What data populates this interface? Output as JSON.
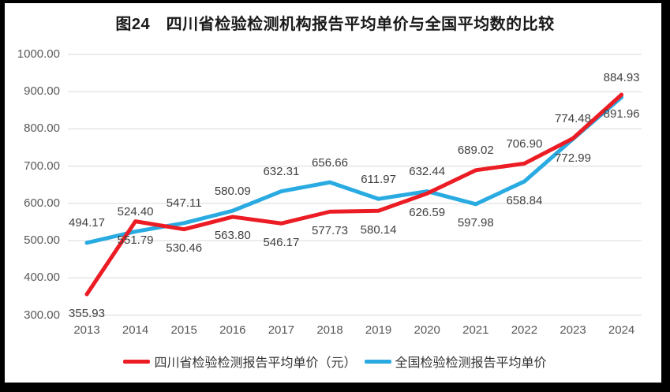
{
  "title": "图24　四川省检验检测机构报告平均单价与全国平均数的比较",
  "chart_data": {
    "type": "line",
    "categories": [
      "2013",
      "2014",
      "2015",
      "2016",
      "2017",
      "2018",
      "2019",
      "2020",
      "2021",
      "2022",
      "2023",
      "2024"
    ],
    "series": [
      {
        "name": "四川省检验检测报告平均单价（元）",
        "color": "#ec1c24",
        "values": [
          355.93,
          551.79,
          530.46,
          563.8,
          546.17,
          577.73,
          580.14,
          626.59,
          689.02,
          706.9,
          774.48,
          891.96
        ],
        "label_side": [
          "below",
          "below",
          "below",
          "below",
          "below",
          "below",
          "below",
          "below",
          "above",
          "above",
          "above",
          "below"
        ]
      },
      {
        "name": "全国检验检测报告平均单价",
        "color": "#29abe2",
        "values": [
          494.17,
          524.4,
          547.11,
          580.09,
          632.31,
          656.66,
          611.97,
          632.44,
          597.98,
          658.84,
          772.99,
          884.93
        ],
        "label_side": [
          "above",
          "above",
          "above",
          "above",
          "above",
          "above",
          "above",
          "above",
          "below",
          "below",
          "below",
          "above"
        ]
      }
    ],
    "xlabel": "",
    "ylabel": "",
    "ylim": [
      300,
      1000
    ],
    "ytick_step": 100,
    "ytick_format_decimals": 2,
    "value_format_decimals": 2,
    "grid": true,
    "legend_position": "bottom",
    "gridline_color": "#d9d9d9",
    "axis_text_color": "#595959",
    "label_text_color": "#404040"
  }
}
